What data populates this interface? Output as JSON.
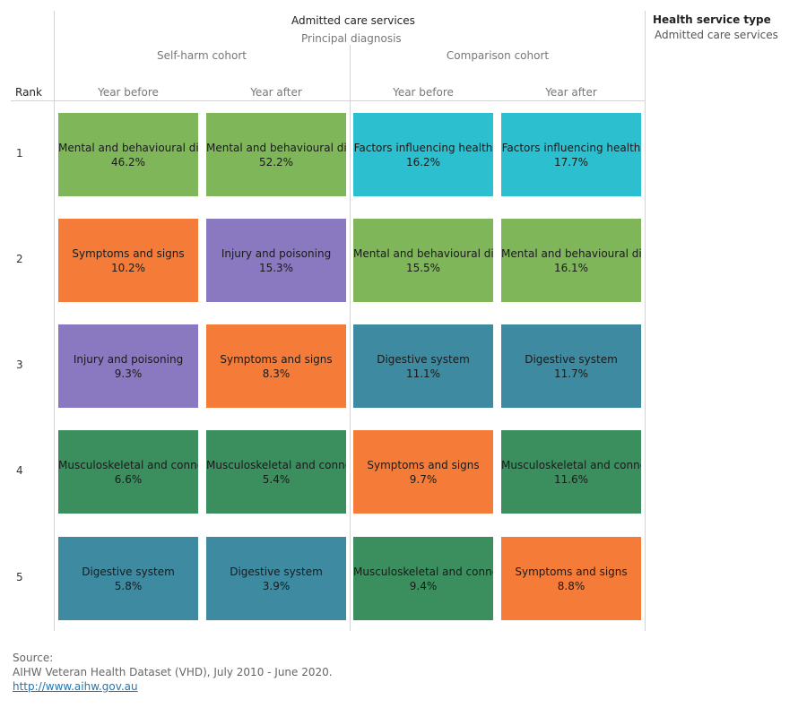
{
  "header": {
    "title": "Admitted care services",
    "subtitle": "Principal diagnosis",
    "rank_label": "Rank"
  },
  "legend": {
    "title": "Health service type",
    "item": "Admitted care services"
  },
  "source": {
    "label": "Source:",
    "text": "AIHW Veteran Health Dataset (VHD), July 2010 - June 2020.",
    "link": "http://www.aihw.gov.au"
  },
  "colors": {
    "Mental and behavioural disorders": "#7fb65a",
    "Symptoms and signs": "#f47c38",
    "Injury and poisoning": "#8a78c0",
    "Musculoskeletal and connective tissue": "#3b8f5e",
    "Digestive system": "#3e8aa0",
    "Factors influencing health": "#2bbfcf"
  },
  "chart_data": {
    "type": "table",
    "cohorts": [
      {
        "name": "Self-harm cohort",
        "periods": [
          {
            "name": "Year before",
            "ranks": [
              {
                "rank": "1",
                "category": "Mental and behavioural disorders",
                "label": "Mental and behavioural dis",
                "value": "46.2%"
              },
              {
                "rank": "2",
                "category": "Symptoms and signs",
                "label": "Symptoms and signs",
                "value": "10.2%"
              },
              {
                "rank": "3",
                "category": "Injury and poisoning",
                "label": "Injury and poisoning",
                "value": "9.3%"
              },
              {
                "rank": "4",
                "category": "Musculoskeletal and connective tissue",
                "label": "Musculoskeletal and conne",
                "value": "6.6%"
              },
              {
                "rank": "5",
                "category": "Digestive system",
                "label": "Digestive system",
                "value": "5.8%"
              }
            ]
          },
          {
            "name": "Year after",
            "ranks": [
              {
                "rank": "1",
                "category": "Mental and behavioural disorders",
                "label": "Mental and behavioural dis",
                "value": "52.2%"
              },
              {
                "rank": "2",
                "category": "Injury and poisoning",
                "label": "Injury and poisoning",
                "value": "15.3%"
              },
              {
                "rank": "3",
                "category": "Symptoms and signs",
                "label": "Symptoms and signs",
                "value": "8.3%"
              },
              {
                "rank": "4",
                "category": "Musculoskeletal and connective tissue",
                "label": "Musculoskeletal and conne",
                "value": "5.4%"
              },
              {
                "rank": "5",
                "category": "Digestive system",
                "label": "Digestive system",
                "value": "3.9%"
              }
            ]
          }
        ]
      },
      {
        "name": "Comparison cohort",
        "periods": [
          {
            "name": "Year before",
            "ranks": [
              {
                "rank": "1",
                "category": "Factors influencing health",
                "label": "Factors influencing health",
                "value": "16.2%"
              },
              {
                "rank": "2",
                "category": "Mental and behavioural disorders",
                "label": "Mental and behavioural dis",
                "value": "15.5%"
              },
              {
                "rank": "3",
                "category": "Digestive system",
                "label": "Digestive system",
                "value": "11.1%"
              },
              {
                "rank": "4",
                "category": "Symptoms and signs",
                "label": "Symptoms and signs",
                "value": "9.7%"
              },
              {
                "rank": "5",
                "category": "Musculoskeletal and connective tissue",
                "label": "Musculoskeletal and conne",
                "value": "9.4%"
              }
            ]
          },
          {
            "name": "Year after",
            "ranks": [
              {
                "rank": "1",
                "category": "Factors influencing health",
                "label": "Factors influencing health",
                "value": "17.7%"
              },
              {
                "rank": "2",
                "category": "Mental and behavioural disorders",
                "label": "Mental and behavioural dis",
                "value": "16.1%"
              },
              {
                "rank": "3",
                "category": "Digestive system",
                "label": "Digestive system",
                "value": "11.7%"
              },
              {
                "rank": "4",
                "category": "Musculoskeletal and connective tissue",
                "label": "Musculoskeletal and conne",
                "value": "11.6%"
              },
              {
                "rank": "5",
                "category": "Symptoms and signs",
                "label": "Symptoms and signs",
                "value": "8.8%"
              }
            ]
          }
        ]
      }
    ]
  }
}
